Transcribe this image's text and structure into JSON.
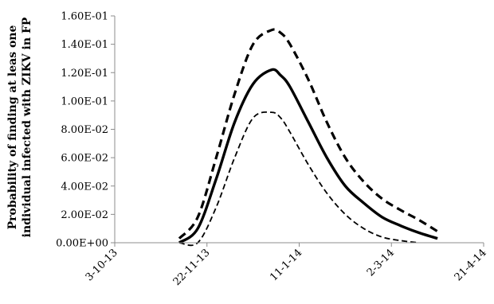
{
  "chart_data": {
    "type": "line",
    "title": "",
    "ylabel_lines": [
      "Probability of finding at leas one",
      "individual infected with ZIKV in FP"
    ],
    "xlabel": "",
    "x_tick_labels": [
      "3-10-13",
      "22-11-13",
      "11-1-14",
      "2-3-14",
      "21-4-14"
    ],
    "x_tick_dates": [
      "2013-10-03",
      "2013-11-22",
      "2014-01-11",
      "2014-03-02",
      "2014-04-21"
    ],
    "xlim": [
      "2013-10-03",
      "2014-04-21"
    ],
    "y_tick_labels": [
      "0.00E+00",
      "2.00E-02",
      "4.00E-02",
      "6.00E-02",
      "8.00E-02",
      "1.00E-01",
      "1.20E-01",
      "1.40E-01",
      "1.60E-01"
    ],
    "ylim": [
      0,
      0.16
    ],
    "y_ticks": [
      0,
      0.02,
      0.04,
      0.06,
      0.08,
      0.1,
      0.12,
      0.14,
      0.16
    ],
    "grid": false,
    "legend": "none",
    "series": [
      {
        "style": "dashed-upper",
        "x": [
          "2013-11-07",
          "2013-11-17",
          "2013-11-27",
          "2013-12-07",
          "2013-12-17",
          "2013-12-27",
          "2014-01-01",
          "2014-01-06",
          "2014-01-16",
          "2014-01-26",
          "2014-02-05",
          "2014-02-15",
          "2014-02-25",
          "2014-03-07",
          "2014-03-17",
          "2014-03-27"
        ],
        "y": [
          0.003,
          0.018,
          0.06,
          0.105,
          0.14,
          0.15,
          0.148,
          0.14,
          0.115,
          0.085,
          0.06,
          0.043,
          0.031,
          0.023,
          0.016,
          0.008
        ]
      },
      {
        "style": "solid-center",
        "x": [
          "2013-11-07",
          "2013-11-17",
          "2013-11-27",
          "2013-12-07",
          "2013-12-17",
          "2013-12-27",
          "2014-01-01",
          "2014-01-06",
          "2014-01-16",
          "2014-01-26",
          "2014-02-05",
          "2014-02-15",
          "2014-02-25",
          "2014-03-07",
          "2014-03-17",
          "2014-03-27"
        ],
        "y": [
          0.0,
          0.01,
          0.045,
          0.085,
          0.112,
          0.122,
          0.118,
          0.11,
          0.085,
          0.06,
          0.04,
          0.028,
          0.018,
          0.012,
          0.007,
          0.003
        ]
      },
      {
        "style": "dashed-lower",
        "x": [
          "2013-11-07",
          "2013-11-17",
          "2013-11-27",
          "2013-12-07",
          "2013-12-17",
          "2013-12-27",
          "2014-01-01",
          "2014-01-06",
          "2014-01-16",
          "2014-01-26",
          "2014-02-05",
          "2014-02-15",
          "2014-02-25",
          "2014-03-07",
          "2014-03-17"
        ],
        "y": [
          0.0,
          0.0,
          0.025,
          0.06,
          0.088,
          0.092,
          0.088,
          0.078,
          0.055,
          0.035,
          0.02,
          0.01,
          0.004,
          0.0015,
          0.0
        ]
      }
    ]
  }
}
